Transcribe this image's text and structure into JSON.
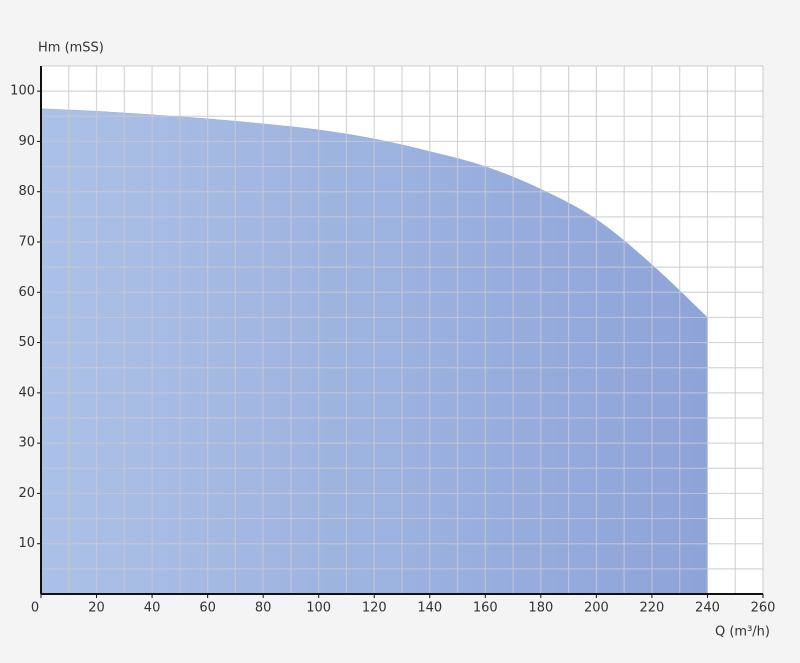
{
  "chart_data": {
    "type": "area",
    "y_label": "Hm (mSS)",
    "x_label": "Q (m³/h)",
    "x": [
      0,
      20,
      40,
      60,
      80,
      100,
      120,
      140,
      160,
      180,
      200,
      220,
      240
    ],
    "series": [
      {
        "color": "#9bb1df",
        "values": [
          96.5,
          96,
          95.3,
          94.5,
          93.5,
          92.3,
          90.5,
          88,
          85,
          80.5,
          74.5,
          65.5,
          55
        ]
      }
    ],
    "xlim": [
      0,
      260
    ],
    "ylim": [
      0,
      105
    ],
    "xticks": [
      0,
      20,
      40,
      60,
      80,
      100,
      120,
      140,
      160,
      180,
      200,
      220,
      240,
      260
    ],
    "yticks": [
      10,
      20,
      30,
      40,
      50,
      60,
      70,
      80,
      90,
      100
    ],
    "xgrid": [
      10,
      20,
      30,
      40,
      50,
      60,
      70,
      80,
      90,
      100,
      110,
      120,
      130,
      140,
      150,
      160,
      170,
      180,
      190,
      200,
      210,
      220,
      230,
      240,
      250,
      260
    ],
    "ygrid": [
      5,
      10,
      15,
      20,
      25,
      30,
      35,
      40,
      45,
      50,
      55,
      60,
      65,
      70,
      75,
      80,
      85,
      90,
      95,
      100,
      105
    ],
    "grid": true
  }
}
